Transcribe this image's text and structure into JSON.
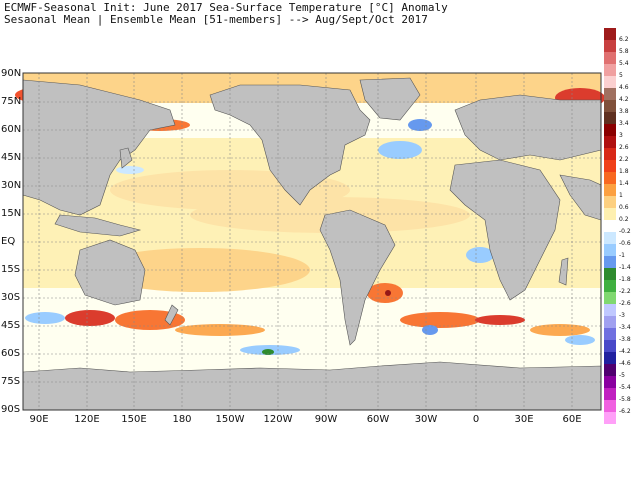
{
  "title": {
    "line1": "ECMWF-Seasonal Init: June 2017 Sea-Surface Temperature [°C] Anomaly",
    "line2": "Sesaonal Mean | Ensemble Mean [51-members] --> Aug/Sept/Oct 2017"
  },
  "map": {
    "lat_labels": [
      "90N",
      "75N",
      "60N",
      "45N",
      "30N",
      "15N",
      "EQ",
      "15S",
      "30S",
      "45S",
      "60S",
      "75S",
      "90S"
    ],
    "lon_labels": [
      "90E",
      "120E",
      "150E",
      "180",
      "150W",
      "120W",
      "90W",
      "60W",
      "30W",
      "0",
      "30E",
      "60E"
    ],
    "land_color": "#c0c0c0",
    "ocean_base_color": "#fffff0"
  },
  "colorbar": {
    "labels": [
      "6.2",
      "5.8",
      "5.4",
      "5",
      "4.6",
      "4.2",
      "3.8",
      "3.4",
      "3",
      "2.6",
      "2.2",
      "1.8",
      "1.4",
      "1",
      "0.6",
      "0.2",
      "-0.2",
      "-0.6",
      "-1",
      "-1.4",
      "-1.8",
      "-2.2",
      "-2.6",
      "-3",
      "-3.4",
      "-3.8",
      "-4.2",
      "-4.6",
      "-5",
      "-5.4",
      "-5.8",
      "-6.2"
    ],
    "colors": [
      "#9e1b1b",
      "#c84040",
      "#e07070",
      "#f0a0a0",
      "#fbd0d0",
      "#a07060",
      "#80503a",
      "#603020",
      "#8b0000",
      "#b01010",
      "#d82818",
      "#f04018",
      "#f86820",
      "#fca040",
      "#fdd080",
      "#fef0b0",
      "#ffffff",
      "#cce8ff",
      "#99ccff",
      "#6699ee",
      "#2e8b2e",
      "#40b040",
      "#80d870",
      "#c0c8ff",
      "#a0a0f0",
      "#7070e0",
      "#4848c8",
      "#2020a0",
      "#500070",
      "#8a00a0",
      "#c020c0",
      "#f060e0",
      "#ffa0f8"
    ]
  }
}
